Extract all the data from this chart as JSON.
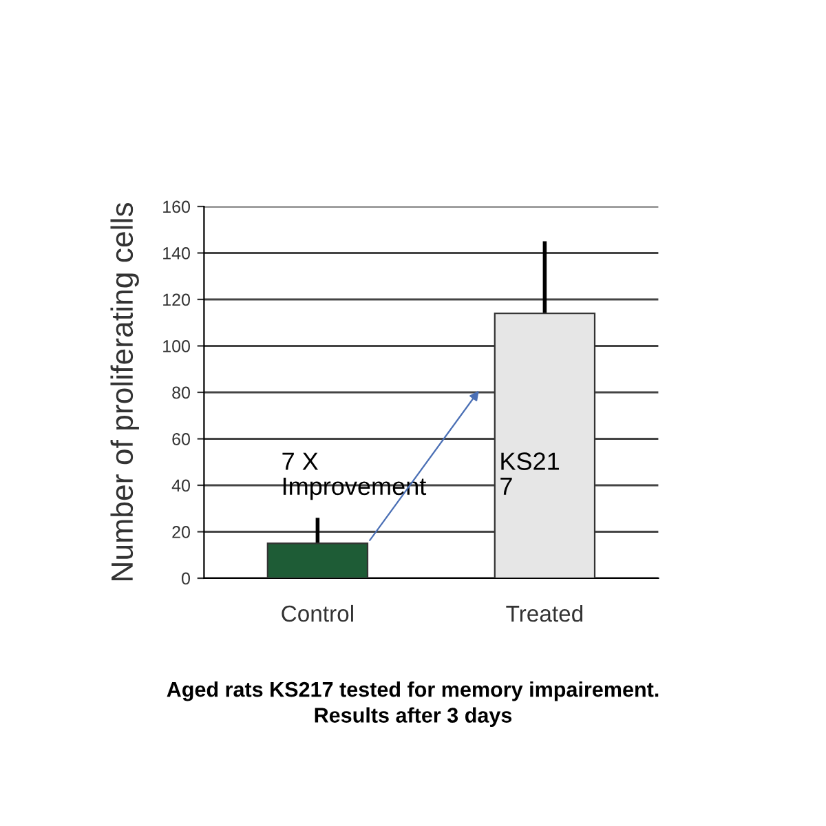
{
  "chart_data": {
    "type": "bar",
    "ylabel": "Number of proliferating cells",
    "categories": [
      "Control",
      "Treated"
    ],
    "values": [
      15,
      114
    ],
    "errors": [
      11,
      31
    ],
    "colors": [
      "#1e5c36",
      "#e6e6e6"
    ],
    "ylim": [
      0,
      160
    ],
    "yticks": [
      0,
      20,
      40,
      60,
      80,
      100,
      120,
      140,
      160
    ],
    "grid": "y",
    "annotations": [
      "7 X\nImprovement",
      "KS21\n7",
      "Aged rats KS217 tested for memory impairement.\nResults after 3 days"
    ]
  }
}
